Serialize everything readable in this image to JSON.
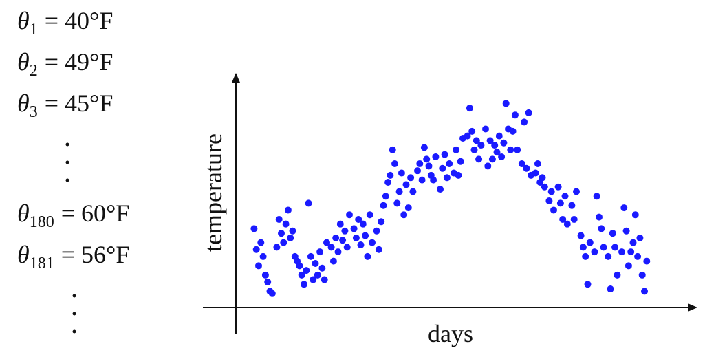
{
  "equations": [
    {
      "symbol": "θ",
      "subscript": "1",
      "value": "= 40°F"
    },
    {
      "symbol": "θ",
      "subscript": "2",
      "value": "= 49°F"
    },
    {
      "symbol": "θ",
      "subscript": "3",
      "value": "= 45°F"
    },
    {
      "symbol": "θ",
      "subscript": "180",
      "value": "= 60°F"
    },
    {
      "symbol": "θ",
      "subscript": "181",
      "value": "= 56°F"
    }
  ],
  "chart_data": {
    "type": "scatter",
    "x_label": "days",
    "y_label": "temperature",
    "color": "#1a1aff",
    "x": [
      4,
      4.5,
      5,
      5.5,
      6,
      6.5,
      7,
      7.5,
      8,
      9,
      9.5,
      10,
      10.5,
      11,
      11.5,
      12,
      12.5,
      13,
      13.5,
      14,
      14.5,
      15,
      15.5,
      16,
      16.5,
      17,
      17.5,
      18,
      18.5,
      19,
      19.5,
      20,
      21,
      21.5,
      22,
      22.5,
      23,
      23.5,
      24,
      24.5,
      25,
      26,
      26.5,
      27,
      27.5,
      28,
      28.5,
      29,
      29.5,
      30,
      31,
      31.5,
      32,
      32.5,
      33,
      33.5,
      34,
      34.5,
      35,
      35.5,
      36,
      36.5,
      37,
      37.5,
      38,
      38.5,
      39,
      40,
      40.5,
      41,
      41.5,
      42,
      42.5,
      43,
      43.5,
      44,
      45,
      45.5,
      46,
      46.5,
      47,
      48,
      48.5,
      49,
      49.5,
      50,
      51,
      51.5,
      52,
      52.5,
      53,
      53.5,
      54,
      55,
      55.5,
      56,
      56.5,
      57,
      57.5,
      58,
      58.5,
      59,
      59.5,
      60,
      60.5,
      61,
      61.5,
      62,
      63,
      63.5,
      64,
      64.5,
      65,
      66,
      66.5,
      67,
      67.5,
      68,
      69,
      69.5,
      70,
      71,
      71.5,
      72,
      72.5,
      73,
      74,
      74.5,
      75,
      76,
      76.5,
      77,
      77.5,
      78,
      79,
      79.5,
      80,
      80.5,
      81,
      82,
      82.5,
      83,
      83.5,
      84,
      85,
      85.5,
      86,
      86.5,
      87,
      87.5,
      88,
      88.5,
      89,
      89.5,
      90,
      90.5
    ],
    "y": [
      34,
      25,
      18,
      28,
      22,
      14,
      11,
      7,
      6,
      26,
      38,
      32,
      28,
      36,
      42,
      30,
      33,
      22,
      20,
      18,
      14,
      10,
      16,
      45,
      22,
      12,
      19,
      14,
      24,
      17,
      12,
      28,
      26,
      20,
      30,
      24,
      36,
      29,
      33,
      26,
      40,
      34,
      30,
      38,
      27,
      36,
      31,
      22,
      40,
      28,
      33,
      25,
      37,
      44,
      48,
      54,
      57,
      68,
      62,
      45,
      50,
      58,
      40,
      53,
      43,
      56,
      50,
      59,
      62,
      55,
      69,
      64,
      61,
      57,
      55,
      65,
      51,
      60,
      66,
      56,
      62,
      58,
      68,
      57,
      63,
      73,
      74,
      86,
      76,
      68,
      72,
      64,
      70,
      77,
      61,
      72,
      64,
      70,
      67,
      74,
      65,
      71,
      88,
      77,
      68,
      76,
      83,
      68,
      62,
      80,
      60,
      84,
      57,
      58,
      62,
      54,
      56,
      52,
      46,
      50,
      42,
      52,
      45,
      38,
      48,
      36,
      44,
      38,
      50,
      31,
      26,
      22,
      10,
      28,
      24,
      48,
      39,
      34,
      26,
      22,
      8,
      32,
      26,
      14,
      24,
      43,
      33,
      18,
      24,
      28,
      40,
      22,
      30,
      14,
      7,
      20
    ],
    "xlim": [
      0,
      100
    ],
    "ylim": [
      0,
      100
    ]
  }
}
